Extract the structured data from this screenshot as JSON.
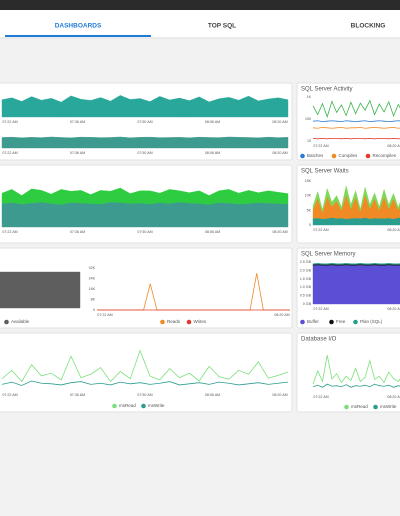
{
  "tabs": [
    "DASHBOARDS",
    "TOP SQL",
    "BLOCKING"
  ],
  "panels": [
    {
      "charts": [
        {
          "kind": "area",
          "ylim": [
            0,
            100
          ],
          "x_labels": [
            "07:22 AM",
            "07:36 AM",
            "07:50 AM",
            "08:06 AM",
            "08:20 AM"
          ],
          "series": [
            {
              "color": "#2aa79b",
              "values": [
                72,
                80,
                65,
                85,
                70,
                78,
                62,
                88,
                74,
                69,
                81,
                66,
                90,
                73,
                77,
                64,
                86,
                71,
                79,
                68,
                84,
                63,
                76,
                82,
                70,
                87,
                67,
                75,
                80,
                72
              ]
            }
          ]
        },
        {
          "kind": "area",
          "ylim": [
            0,
            100
          ],
          "x_labels": [
            "07:22 AM",
            "07:36 AM",
            "07:50 AM",
            "08:06 AM",
            "08:20 AM"
          ],
          "series": [
            {
              "color": "#3d9a8f",
              "values": [
                62,
                64,
                60,
                63,
                61,
                65,
                62,
                60,
                64,
                63,
                61,
                62,
                65,
                60,
                63,
                64,
                61,
                62,
                63,
                60,
                64,
                62,
                61,
                65,
                63,
                62,
                60,
                64,
                61,
                63
              ]
            }
          ]
        }
      ]
    },
    {
      "title": "SQL Server Activity",
      "charts": [
        {
          "kind": "line",
          "ylim": [
            0,
            100
          ],
          "y_labels": [
            "1K",
            "100",
            "10"
          ],
          "x_labels": [
            "07:22 AM",
            "08:20 AM"
          ],
          "series": [
            {
              "name": "Batches",
              "color": "#2b7bd6",
              "values": [
                45,
                46,
                44,
                45,
                46,
                45,
                44,
                46,
                45,
                44,
                45,
                46,
                44,
                45,
                46,
                45,
                44,
                45,
                46,
                45
              ]
            },
            {
              "name": "Compiles",
              "color": "#f08a24",
              "values": [
                30,
                29,
                31,
                30,
                29,
                30,
                31,
                29,
                30,
                30,
                31,
                29,
                30,
                31,
                30,
                29,
                30,
                31,
                29,
                30
              ]
            },
            {
              "name": "Recompiles",
              "color": "#e23b2e",
              "values": [
                6,
                5,
                6,
                5,
                6,
                6,
                5,
                6,
                5,
                6,
                6,
                5,
                6,
                5,
                6,
                6,
                5,
                6,
                5,
                6
              ]
            },
            {
              "color": "#3cb44b",
              "values": [
                80,
                60,
                85,
                55,
                90,
                65,
                82,
                58,
                88,
                62,
                86,
                70,
                92,
                60,
                84,
                66,
                89,
                57,
                83,
                64
              ]
            }
          ]
        }
      ]
    },
    {
      "charts": [
        {
          "kind": "stacked",
          "ylim": [
            0,
            100
          ],
          "x_labels": [
            "07:22 AM",
            "07:36 AM",
            "07:50 AM",
            "08:06 AM",
            "08:20 AM"
          ],
          "series": [
            {
              "color": "#3d9a8f",
              "values": [
                50,
                52,
                49,
                51,
                53,
                50,
                48,
                52,
                51,
                50,
                49,
                53,
                52,
                50,
                51,
                49,
                52,
                50,
                53,
                51,
                50,
                48,
                52,
                51,
                49,
                50,
                52,
                51,
                50,
                49
              ]
            },
            {
              "color": "#2ecc40",
              "values": [
                22,
                28,
                18,
                30,
                25,
                20,
                32,
                24,
                27,
                19,
                29,
                23,
                31,
                21,
                26,
                28,
                20,
                30,
                24,
                22,
                27,
                19,
                25,
                29,
                23,
                28,
                21,
                26,
                24,
                22
              ]
            }
          ]
        }
      ]
    },
    {
      "title": "SQL Server Waits",
      "charts": [
        {
          "kind": "stacked",
          "ylim": [
            0,
            100
          ],
          "y_labels": [
            "15K",
            "10K",
            "5K",
            "0"
          ],
          "x_labels": [
            "07:22 AM",
            "08:20 AM"
          ],
          "series": [
            {
              "color": "#2a9d8f",
              "values": [
                15,
                16,
                14,
                15,
                17,
                15,
                16,
                14,
                15,
                16,
                15,
                17,
                14,
                16,
                15,
                15,
                16,
                14,
                17,
                15
              ]
            },
            {
              "color": "#f08a24",
              "values": [
                20,
                45,
                15,
                50,
                25,
                40,
                18,
                55,
                22,
                48,
                16,
                52,
                24,
                44,
                19,
                50,
                21,
                46,
                17,
                42
              ]
            },
            {
              "color": "#7ed957",
              "values": [
                8,
                15,
                5,
                18,
                10,
                12,
                6,
                20,
                9,
                14,
                5,
                17,
                8,
                13,
                7,
                16,
                9,
                12,
                6,
                14
              ]
            }
          ]
        }
      ]
    },
    {
      "charts": [
        {
          "kind": "area",
          "ylim": [
            0,
            100
          ],
          "series": [
            {
              "name": "Available",
              "color": "#5e5e5e",
              "values": [
                90,
                90,
                90,
                90,
                90,
                90,
                90,
                90,
                90,
                90,
                90,
                90
              ]
            }
          ]
        },
        {
          "kind": "line",
          "ylim": [
            0,
            32
          ],
          "y_labels": [
            "32K",
            "24K",
            "16K",
            "8K",
            "0"
          ],
          "x_labels": [
            "07:22 AM",
            "08:20 AM"
          ],
          "series": [
            {
              "name": "Reads",
              "color": "#f08a24",
              "values": [
                0,
                0,
                0,
                0,
                0,
                0,
                0,
                0,
                20,
                0,
                0,
                0,
                0,
                0,
                0,
                0,
                0,
                0,
                0,
                0,
                0,
                0,
                0,
                0,
                28,
                0,
                0,
                0,
                0,
                0
              ]
            },
            {
              "name": "Writes",
              "color": "#e23b2e",
              "values": [
                0,
                0,
                0,
                0,
                0,
                0,
                0,
                0,
                0,
                0,
                0,
                0,
                0,
                0,
                0,
                0,
                0,
                0,
                0,
                0,
                0,
                0,
                0,
                0,
                0,
                0,
                0,
                0,
                0,
                0
              ]
            }
          ]
        }
      ]
    },
    {
      "title": "SQL Server Memory",
      "charts": [
        {
          "kind": "stacked",
          "ylim": [
            0,
            100
          ],
          "y_labels": [
            "2.5 GB",
            "2.0 GB",
            "1.5 GB",
            "1.0 GB",
            "0.5 GB",
            "0 GB"
          ],
          "x_labels": [
            "07:22 AM",
            "08:20 AM"
          ],
          "series": [
            {
              "name": "Buffer",
              "color": "#5b4fd6",
              "values": [
                92,
                93,
                92,
                92,
                93,
                92,
                92,
                93,
                92,
                92,
                93,
                92,
                92,
                93,
                92,
                92,
                93,
                92,
                92,
                93
              ]
            },
            {
              "name": "Free",
              "color": "#111111",
              "values": [
                2,
                2,
                2,
                2,
                2,
                2,
                2,
                2,
                2,
                2,
                2,
                2,
                2,
                2,
                2,
                2,
                2,
                2,
                2,
                2
              ]
            },
            {
              "name": "Plan (SQL)",
              "color": "#2a9d8f",
              "values": [
                2,
                2,
                2,
                2,
                2,
                2,
                2,
                2,
                2,
                2,
                2,
                2,
                2,
                2,
                2,
                2,
                2,
                2,
                2,
                2
              ]
            }
          ]
        }
      ]
    },
    {
      "charts": [
        {
          "kind": "line",
          "ylim": [
            0,
            80
          ],
          "x_labels": [
            "07:22 AM",
            "07:36 AM",
            "07:50 AM",
            "08:06 AM",
            "08:20 AM"
          ],
          "series": [
            {
              "name": "msRead",
              "color": "#7be07b",
              "values": [
                20,
                35,
                15,
                45,
                25,
                30,
                18,
                60,
                22,
                28,
                40,
                15,
                33,
                20,
                70,
                25,
                18,
                38,
                22,
                30,
                16,
                42,
                24,
                19,
                35,
                28,
                50,
                21,
                26,
                32
              ]
            },
            {
              "name": "msWrite",
              "color": "#2a9d8f",
              "values": [
                10,
                14,
                8,
                16,
                12,
                11,
                9,
                13,
                15,
                10,
                12,
                9,
                14,
                11,
                13,
                10,
                12,
                15,
                9,
                11,
                13,
                10,
                14,
                12,
                9,
                11,
                13,
                10,
                12,
                14
              ]
            }
          ]
        }
      ]
    },
    {
      "title": "Database I/O",
      "charts": [
        {
          "kind": "line",
          "ylim": [
            0,
            80
          ],
          "x_labels": [
            "07:22 AM",
            "08:20 AM"
          ],
          "series": [
            {
              "name": "msRead",
              "color": "#7be07b",
              "values": [
                15,
                40,
                20,
                70,
                25,
                35,
                18,
                30,
                22,
                45,
                20,
                28,
                60,
                24,
                30,
                18,
                38,
                25,
                20,
                33
              ]
            },
            {
              "name": "msWrite",
              "color": "#2a9d8f",
              "values": [
                10,
                13,
                9,
                15,
                11,
                12,
                10,
                14,
                9,
                12,
                11,
                13,
                10,
                15,
                12,
                11,
                13,
                9,
                12,
                10
              ]
            }
          ]
        }
      ]
    }
  ]
}
